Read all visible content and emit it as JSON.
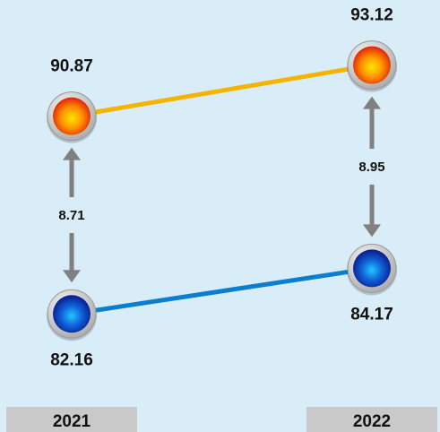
{
  "chart_data": {
    "type": "line",
    "categories": [
      "2021",
      "2022"
    ],
    "series": [
      {
        "values": [
          90.87,
          93.12
        ],
        "color": "#f4b400",
        "marker": "orange-red-gradient"
      },
      {
        "values": [
          82.16,
          84.17
        ],
        "color": "#0a7fd0",
        "marker": "blue-gradient"
      }
    ],
    "differences": [
      "8.71",
      "8.95"
    ],
    "value_labels": [
      [
        "90.87",
        "93.12"
      ],
      [
        "82.16",
        "84.17"
      ]
    ],
    "ylim": [
      80,
      95
    ],
    "grid": false,
    "legend": "none",
    "background": "#d9edf9",
    "category_box_color": "#c9c9c9",
    "arrow_color": "#808080"
  }
}
